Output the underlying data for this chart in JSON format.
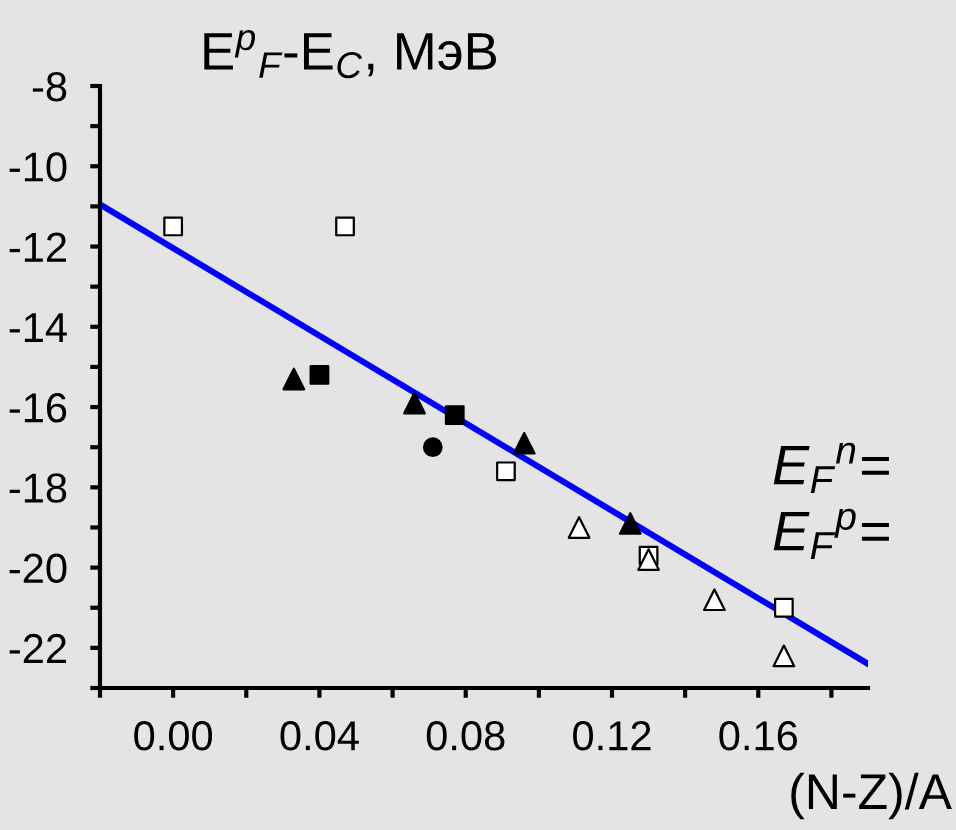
{
  "chart_data": {
    "type": "scatter",
    "title": "E$^{p}$$_{F}$-E$_{C}$, МэВ",
    "xlabel": "(N-Z)/A",
    "annotations": [
      "E$_{F}$$^{n}$=",
      "E$_{F}$$^{p}$="
    ],
    "xlim": [
      -0.02,
      0.19
    ],
    "xticks": [
      {
        "value": -0.02,
        "label": null
      },
      {
        "value": 0,
        "label": "0.00"
      },
      {
        "value": 0.02,
        "label": null
      },
      {
        "value": 0.04,
        "label": "0.04"
      },
      {
        "value": 0.06,
        "label": null
      },
      {
        "value": 0.08,
        "label": "0.08"
      },
      {
        "value": 0.1,
        "label": null
      },
      {
        "value": 0.12,
        "label": "0.12"
      },
      {
        "value": 0.14,
        "label": null
      },
      {
        "value": 0.16,
        "label": "0.16"
      },
      {
        "value": 0.18,
        "label": null
      }
    ],
    "ylim": [
      -23,
      -8
    ],
    "yticks": [
      -8,
      {
        "value": -9,
        "label": null
      },
      -10,
      {
        "value": -11,
        "label": null
      },
      -12,
      {
        "value": -13,
        "label": null
      },
      -14,
      {
        "value": -15,
        "label": null
      },
      -16,
      {
        "value": -17,
        "label": null
      },
      -18,
      {
        "value": -19,
        "label": null
      },
      -20,
      {
        "value": -21,
        "label": null
      },
      -22,
      {
        "value": -23,
        "label": null
      }
    ],
    "grid": false,
    "legend": false,
    "series": [
      {
        "marker": "square",
        "color": "#ffffff",
        "x": [
          0.0,
          0.047,
          0.091,
          0.13,
          0.167
        ],
        "values": [
          -11.5,
          -11.5,
          -17.6,
          -19.7,
          -21.0
        ]
      },
      {
        "marker": "triangle",
        "color": "#000000",
        "x": [
          0.033,
          0.066,
          0.096,
          0.125
        ],
        "values": [
          -15.3,
          -15.9,
          -16.9,
          -18.9
        ]
      },
      {
        "marker": "square",
        "color": "#000000",
        "x": [
          0.04,
          0.077
        ],
        "values": [
          -15.2,
          -16.2
        ]
      },
      {
        "marker": "circle",
        "color": "#000000",
        "x": [
          0.071
        ],
        "values": [
          -17.0
        ]
      },
      {
        "marker": "triangle",
        "color": "#ffffff",
        "x": [
          0.111,
          0.13,
          0.148,
          0.167
        ],
        "values": [
          -19.0,
          -19.8,
          -20.8,
          -22.2
        ]
      },
      {
        "type": "line",
        "marker": "none",
        "line_style": "solid",
        "color": "#0000ff",
        "x": [
          -0.02,
          0.19
        ],
        "values": [
          -10.95,
          -22.4
        ]
      }
    ]
  }
}
